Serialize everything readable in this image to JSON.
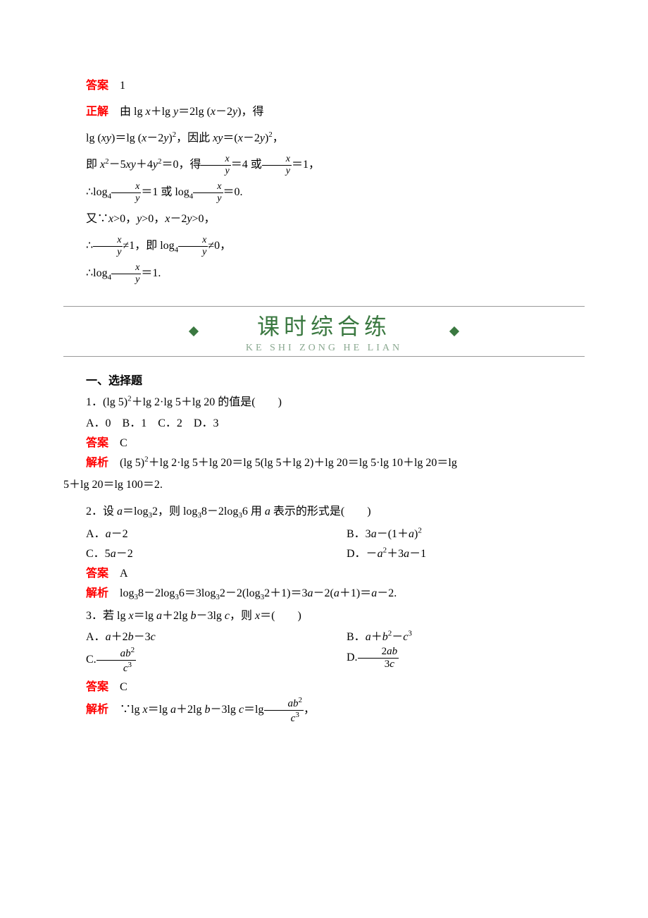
{
  "colors": {
    "red": "#ff0000",
    "banner_green": "#3a7840",
    "banner_sub": "#8aa890",
    "banner_border": "#999999",
    "text": "#000000",
    "background": "#ffffff"
  },
  "typography": {
    "body_family": "SimSun / 宋体",
    "body_size_pt": 12,
    "banner_cn_family": "KaiTi",
    "banner_cn_size_pt": 24,
    "banner_py_size_pt": 10
  },
  "top": {
    "answer_label": "答案",
    "answer_value": "1",
    "solution_label": "正解",
    "lines": [
      "由 lg x＋lg y＝2lg (x－2y)，得",
      "lg (xy)＝lg (x－2y)²，因此 xy＝(x－2y)²，",
      "即 x²－5xy＋4y²＝0，得 x/y＝4 或 x/y＝1，",
      "∴log₄ x/y＝1 或 log₄ x/y＝0.",
      "又∵x>0，y>0，x－2y>0，",
      "∴ x/y ≠1，即 log₄ x/y ≠0，",
      "∴log₄ x/y＝1."
    ]
  },
  "banner": {
    "cn": "课时综合练",
    "pinyin": "KE SHI ZONG HE LIAN"
  },
  "section1_title": "一、选择题",
  "q1": {
    "stem": "1．(lg 5)²＋lg 2·lg 5＋lg 20 的值是(　　)",
    "opts": "A．0　B．1　C．2　D．3",
    "answer_label": "答案",
    "answer": "C",
    "expl_label": "解析",
    "expl": "(lg 5)²＋lg 2·lg 5＋lg 20＝lg 5(lg 5＋lg 2)＋lg 20＝lg 5·lg 10＋lg 20＝lg 5＋lg 20＝lg 100＝2."
  },
  "q2": {
    "stem": "2．设 a＝log₃2，则 log₃8－2log₃6 用 a 表示的形式是(　　)",
    "optA": "A．a－2",
    "optB": "B．3a－(1＋a)²",
    "optC": "C．5a－2",
    "optD": "D．－a²＋3a－1",
    "answer_label": "答案",
    "answer": "A",
    "expl_label": "解析",
    "expl": "log₃8－2log₃6＝3log₃2－2(log₃2＋1)＝3a－2(a＋1)＝a－2."
  },
  "q3": {
    "stem": "3．若 lg x＝lg a＋2lg b－3lg c，则 x＝(　　)",
    "optA": "A．a＋2b－3c",
    "optB": "B．a＋b²－c³",
    "optC_prefix": "C.",
    "optC_num": "ab²",
    "optC_den": "c³",
    "optD_prefix": "D.",
    "optD_num": "2ab",
    "optD_den": "3c",
    "answer_label": "答案",
    "answer": "C",
    "expl_label": "解析",
    "expl_prefix": "∵lg x＝lg a＋2lg b－3lg c＝lg",
    "expl_frac_num": "ab²",
    "expl_frac_den": "c³",
    "expl_suffix": "，"
  }
}
